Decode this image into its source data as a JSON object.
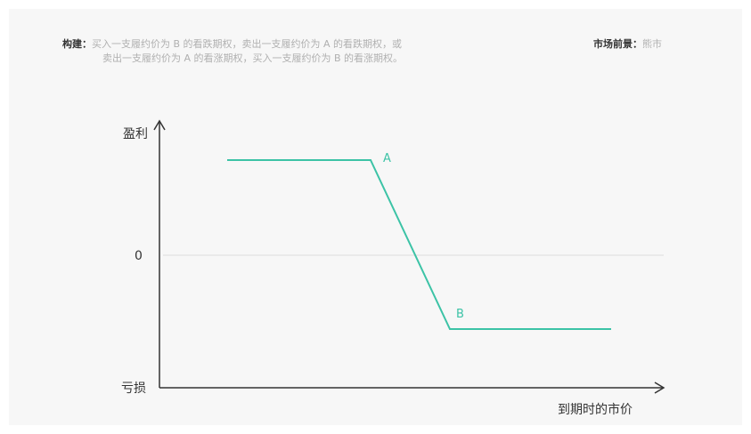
{
  "header": {
    "construction_label": "构建：",
    "construction_line1": "买入一支履约价为 B 的看跌期权，卖出一支履约价为 A 的看跌期权，或",
    "construction_line2": "卖出一支履约价为 A 的看涨期权，买入一支履约价为 B 的看涨期权。",
    "outlook_label": "市场前景：",
    "outlook_value": "熊市"
  },
  "diagram": {
    "y_top_label": "盈利",
    "y_zero_label": "0",
    "y_bottom_label": "亏损",
    "x_label": "到期时的市价",
    "point_a": "A",
    "point_b": "B",
    "line_color": "#3cc3a6",
    "axis_color": "#333333",
    "zero_line_color": "#dddddd"
  }
}
